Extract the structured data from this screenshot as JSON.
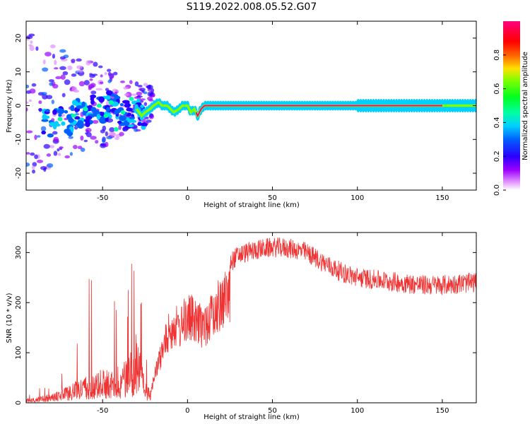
{
  "title": "S119.2022.008.05.52.G07",
  "chart_data": [
    {
      "type": "heatmap",
      "xlabel": "Height of straight line (km)",
      "ylabel": "Frequency (Hz)",
      "xlim": [
        -95,
        170
      ],
      "ylim": [
        -25,
        25
      ],
      "xticks": [
        -50,
        0,
        50,
        100,
        150
      ],
      "yticks": [
        -20,
        -10,
        0,
        10,
        20
      ],
      "colorbar": {
        "label": "Normalized spectral amplitude",
        "ticks": [
          "0.0",
          "0.2",
          "0.4",
          "0.6",
          "0.8"
        ],
        "tick_values": [
          0.0,
          0.2,
          0.4,
          0.6,
          0.8
        ],
        "range": [
          0,
          1
        ],
        "colormap": "gist_rainbow (white/magenta low to red high)"
      },
      "ridge": {
        "x": [
          -85,
          -80,
          -75,
          -70,
          -65,
          -60,
          -55,
          -50,
          -45,
          -40,
          -35,
          -30,
          -27,
          -25,
          -22,
          -20,
          -17,
          -15,
          -12,
          -10,
          -8,
          -5,
          -3,
          0,
          2,
          4,
          6,
          8,
          10,
          15,
          20,
          30,
          50,
          80,
          100,
          120,
          140,
          160,
          170
        ],
        "y": [
          -4,
          -6,
          -3,
          -5,
          -2,
          -3,
          0,
          -2,
          1,
          -2,
          -3,
          -1,
          -3,
          -2,
          -1,
          0,
          1,
          0,
          0,
          -1,
          -2,
          -1,
          0,
          0,
          -2,
          -1,
          -3,
          -1,
          0,
          0,
          0,
          0,
          0,
          0,
          0,
          0,
          0,
          0,
          0
        ]
      }
    },
    {
      "type": "line",
      "xlabel": "Height of straight line (km)",
      "ylabel": "SNR (10 * v/v)",
      "xlim": [
        -95,
        170
      ],
      "ylim": [
        0,
        340
      ],
      "xticks": [
        -50,
        0,
        50,
        100,
        150
      ],
      "yticks": [
        0,
        100,
        200,
        300
      ],
      "color": "#f03232",
      "envelope": {
        "x": [
          -95,
          -90,
          -85,
          -80,
          -75,
          -70,
          -65,
          -60,
          -55,
          -50,
          -45,
          -40,
          -35,
          -32,
          -30,
          -28,
          -25,
          -22,
          -20,
          -18,
          -15,
          -12,
          -10,
          -8,
          -5,
          -2,
          0,
          3,
          6,
          10,
          15,
          20,
          25,
          30,
          35,
          40,
          45,
          50,
          55,
          60,
          65,
          70,
          75,
          80,
          85,
          90,
          95,
          100,
          105,
          110,
          115,
          120,
          130,
          140,
          150,
          160,
          170
        ],
        "y": [
          8,
          10,
          15,
          18,
          25,
          35,
          45,
          55,
          60,
          70,
          65,
          75,
          90,
          110,
          150,
          100,
          40,
          30,
          60,
          90,
          130,
          170,
          190,
          200,
          190,
          210,
          220,
          215,
          200,
          200,
          230,
          260,
          280,
          295,
          300,
          305,
          308,
          310,
          310,
          308,
          305,
          300,
          290,
          280,
          270,
          262,
          255,
          250,
          248,
          246,
          244,
          242,
          238,
          235,
          235,
          238,
          240
        ]
      }
    }
  ]
}
